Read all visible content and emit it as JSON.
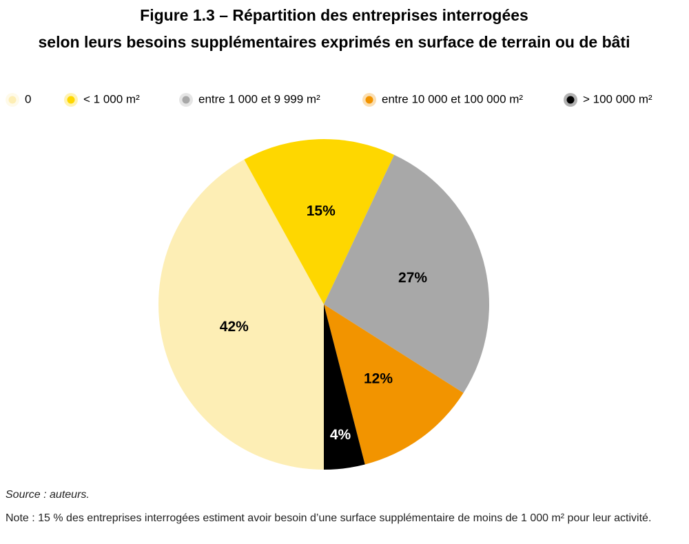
{
  "chart_data": {
    "type": "pie",
    "title": [
      "Figure 1.3 – Répartition des entreprises interrogées",
      "selon leurs besoins supplémentaires exprimés en surface de terrain ou de bâti"
    ],
    "categories": [
      "0",
      "< 1 000 m²",
      "entre 1 000 et 9 999 m²",
      "entre 10 000 et 100 000 m²",
      "> 100 000 m²"
    ],
    "values": [
      42,
      15,
      27,
      12,
      4
    ],
    "value_labels": [
      "42%",
      "15%",
      "27%",
      "12%",
      "4%"
    ],
    "colors": [
      "#fdeeb5",
      "#fed700",
      "#a8a8a8",
      "#f29400",
      "#000000"
    ],
    "legend": "top",
    "source": "Source : auteurs.",
    "note": "Note : 15 % des entreprises interrogées estiment avoir besoin d’une surface supplémentaire de moins de 1 000 m² pour leur activité."
  }
}
